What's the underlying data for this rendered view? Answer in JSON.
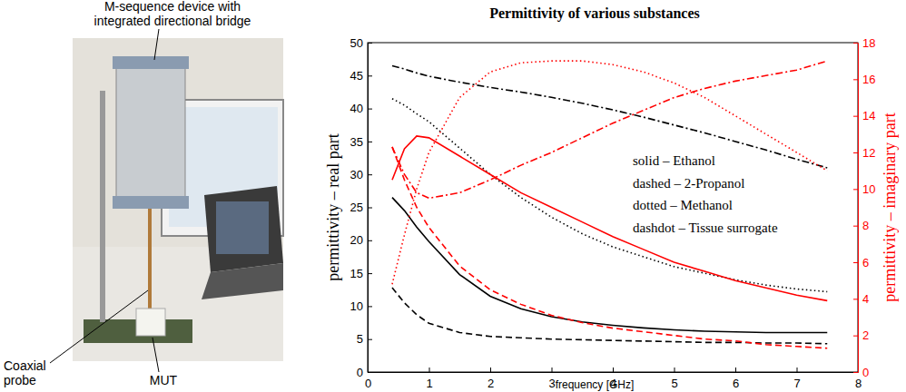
{
  "chart_data": {
    "type": "line",
    "title": "Permittivity of various substances",
    "xlabel": "frequency [GHz]",
    "ylabel": "permittivity – real part",
    "y2label": "permittivity – imaginary part",
    "x": [
      0.4,
      0.6,
      0.8,
      1,
      1.5,
      2,
      2.5,
      3,
      3.5,
      4,
      4.5,
      5,
      5.5,
      6,
      6.5,
      7,
      7.5
    ],
    "xlim": [
      0,
      8
    ],
    "xticks": [
      0,
      1,
      2,
      3,
      4,
      5,
      6,
      7,
      8
    ],
    "ylim": [
      0,
      50
    ],
    "yticks": [
      0,
      5,
      10,
      15,
      20,
      25,
      30,
      35,
      40,
      45,
      50
    ],
    "y2lim": [
      0,
      18
    ],
    "y2ticks": [
      0,
      2,
      4,
      6,
      8,
      10,
      12,
      14,
      16,
      18
    ],
    "annotations": [
      "solid – Ethanol",
      "dashed – 2-Propanol",
      "dotted – Methanol",
      "dashdot – Tissue surrogate"
    ],
    "series": [
      {
        "name": "Ethanol",
        "color": "#000000",
        "line_style": "solid",
        "values": [
          26.5,
          24.5,
          22,
          19.8,
          14.8,
          11.5,
          9.6,
          8.4,
          7.6,
          7.1,
          6.7,
          6.4,
          6.2,
          6.1,
          6.0,
          6.0,
          6.0
        ]
      },
      {
        "name": "2-Propanol",
        "color": "#000000",
        "line_style": "dashed",
        "values": [
          12.8,
          10.5,
          8.7,
          7.4,
          6.0,
          5.4,
          5.2,
          5.0,
          4.9,
          4.8,
          4.7,
          4.6,
          4.5,
          4.5,
          4.4,
          4.4,
          4.3
        ]
      },
      {
        "name": "Methanol",
        "color": "#000000",
        "line_style": "dotted",
        "values": [
          41.5,
          40.5,
          39.2,
          38,
          34,
          30,
          26.5,
          23.5,
          21,
          19,
          17.5,
          16,
          15,
          14,
          13.2,
          12.6,
          12.2
        ]
      },
      {
        "name": "Tissue surrogate",
        "color": "#000000",
        "line_style": "dashdot",
        "values": [
          46.5,
          46,
          45.4,
          44.9,
          44,
          43.2,
          42.5,
          41.7,
          40.8,
          39.8,
          38.7,
          37.5,
          36.3,
          35,
          33.7,
          32.3,
          31
        ]
      },
      {
        "name": "Ethanol",
        "color": "#ff0000",
        "line_style": "solid",
        "axis": "y2",
        "values": [
          10.5,
          12.2,
          12.9,
          12.8,
          11.8,
          10.8,
          9.8,
          9.0,
          8.2,
          7.4,
          6.7,
          6.0,
          5.5,
          5.0,
          4.6,
          4.2,
          3.9
        ]
      },
      {
        "name": "2-Propanol",
        "color": "#ff0000",
        "line_style": "dashed",
        "axis": "y2",
        "values": [
          12.3,
          10.5,
          9.0,
          7.9,
          5.8,
          4.5,
          3.7,
          3.1,
          2.7,
          2.4,
          2.2,
          2.0,
          1.8,
          1.7,
          1.5,
          1.4,
          1.3
        ]
      },
      {
        "name": "Methanol",
        "color": "#ff0000",
        "line_style": "dotted",
        "axis": "y2",
        "values": [
          4.8,
          7.5,
          10,
          12,
          15,
          16.4,
          16.9,
          17.0,
          17.0,
          16.8,
          16.4,
          15.8,
          15.0,
          14.0,
          13,
          12,
          11.0
        ]
      },
      {
        "name": "Tissue surrogate",
        "color": "#ff0000",
        "line_style": "dashdot",
        "axis": "y2",
        "values": [
          12.3,
          10.8,
          9.8,
          9.5,
          9.8,
          10.5,
          11.3,
          12.0,
          12.8,
          13.6,
          14.3,
          15.0,
          15.5,
          15.9,
          16.2,
          16.5,
          17.0
        ]
      }
    ]
  },
  "photo": {
    "labels": [
      {
        "lines": [
          "M-sequence device with",
          "integrated directional bridge"
        ]
      },
      {
        "lines": [
          "Coaxial",
          "probe"
        ]
      },
      {
        "lines": [
          "MUT"
        ]
      }
    ]
  }
}
